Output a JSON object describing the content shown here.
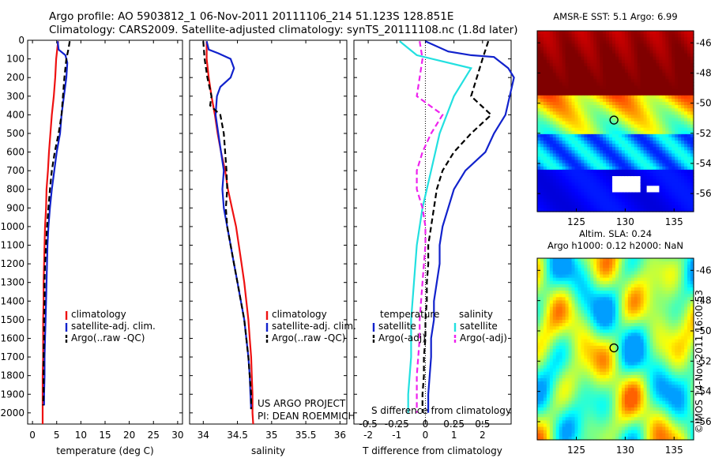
{
  "header": {
    "line1": "Argo profile: AO 5903812_1 06-Nov-2011 20111106_214 51.123S 128.851E",
    "line2": "Climatology: CARS2009. Satellite-adjusted climatology: synTS_20111108.nc (1.8d later)"
  },
  "credits": {
    "project": "US ARGO PROJECT",
    "pi": "PI: DEAN ROEMMICH",
    "stamp": "©IMOS 14-Nov-2011 16:00:53"
  },
  "colors": {
    "climatology": "#ee1111",
    "satellite": "#1122cc",
    "argo": "#000000",
    "salinity_satellite": "#22e0e0",
    "salinity_argo": "#ee22ee"
  },
  "chart_data": [
    {
      "type": "line",
      "panel": "temperature",
      "xlabel": "temperature (deg C)",
      "ylabel": "",
      "xlim": [
        -1,
        31
      ],
      "ylim": [
        2060,
        0
      ],
      "xticks": [
        0,
        5,
        10,
        15,
        20,
        25,
        30
      ],
      "yticks": [
        0,
        100,
        200,
        300,
        400,
        500,
        600,
        700,
        800,
        900,
        1000,
        1100,
        1200,
        1300,
        1400,
        1500,
        1600,
        1700,
        1800,
        1900,
        2000
      ],
      "legend": [
        "climatology",
        "satellite-adj. clim.",
        "Argo(..raw -QC)"
      ],
      "series": [
        {
          "name": "climatology",
          "color": "#ee1111",
          "dash": false,
          "points": [
            [
              5.3,
              5
            ],
            [
              5.1,
              50
            ],
            [
              4.9,
              100
            ],
            [
              4.7,
              200
            ],
            [
              4.4,
              300
            ],
            [
              4.0,
              400
            ],
            [
              3.7,
              500
            ],
            [
              3.4,
              600
            ],
            [
              3.2,
              700
            ],
            [
              2.9,
              800
            ],
            [
              2.8,
              900
            ],
            [
              2.6,
              1000
            ],
            [
              2.5,
              1100
            ],
            [
              2.4,
              1200
            ],
            [
              2.3,
              1300
            ],
            [
              2.3,
              1400
            ],
            [
              2.2,
              1500
            ],
            [
              2.2,
              1600
            ],
            [
              2.2,
              1700
            ],
            [
              2.1,
              1800
            ],
            [
              2.1,
              1900
            ],
            [
              2.1,
              2000
            ],
            [
              2.1,
              2060
            ]
          ]
        },
        {
          "name": "satellite-adj. clim.",
          "color": "#1122cc",
          "dash": false,
          "points": [
            [
              5.2,
              5
            ],
            [
              5.4,
              50
            ],
            [
              6.8,
              80
            ],
            [
              7.2,
              120
            ],
            [
              7.0,
              200
            ],
            [
              6.5,
              300
            ],
            [
              6.0,
              400
            ],
            [
              5.7,
              500
            ],
            [
              5.0,
              600
            ],
            [
              4.5,
              700
            ],
            [
              4.0,
              800
            ],
            [
              3.6,
              900
            ],
            [
              3.3,
              1000
            ],
            [
              3.1,
              1100
            ],
            [
              3.0,
              1200
            ],
            [
              2.9,
              1300
            ],
            [
              2.8,
              1400
            ],
            [
              2.7,
              1500
            ],
            [
              2.6,
              1600
            ],
            [
              2.5,
              1700
            ],
            [
              2.5,
              1800
            ],
            [
              2.4,
              1900
            ],
            [
              2.4,
              1960
            ]
          ]
        },
        {
          "name": "Argo(..raw -QC)",
          "color": "#000000",
          "dash": true,
          "points": [
            [
              7.7,
              5
            ],
            [
              7.4,
              50
            ],
            [
              7.0,
              100
            ],
            [
              6.6,
              200
            ],
            [
              6.3,
              300
            ],
            [
              6.0,
              400
            ],
            [
              5.4,
              500
            ],
            [
              4.6,
              600
            ],
            [
              4.0,
              700
            ],
            [
              3.6,
              800
            ],
            [
              3.3,
              900
            ],
            [
              3.0,
              1000
            ],
            [
              2.8,
              1100
            ],
            [
              2.6,
              1200
            ],
            [
              2.5,
              1300
            ],
            [
              2.5,
              1400
            ],
            [
              2.4,
              1500
            ],
            [
              2.4,
              1600
            ],
            [
              2.3,
              1700
            ],
            [
              2.3,
              1800
            ],
            [
              2.3,
              1900
            ],
            [
              2.2,
              1960
            ]
          ]
        }
      ]
    },
    {
      "type": "line",
      "panel": "salinity",
      "xlabel": "salinity",
      "ylabel": "",
      "xlim": [
        33.8,
        36.1
      ],
      "ylim": [
        2060,
        0
      ],
      "xticks": [
        34,
        34.5,
        35,
        35.5,
        36
      ],
      "legend": [
        "climatology",
        "satellite-adj. clim.",
        "Argo(..raw -QC)"
      ],
      "series": [
        {
          "name": "climatology",
          "color": "#ee1111",
          "dash": false,
          "points": [
            [
              34.05,
              5
            ],
            [
              34.05,
              100
            ],
            [
              34.08,
              200
            ],
            [
              34.12,
              300
            ],
            [
              34.17,
              400
            ],
            [
              34.21,
              500
            ],
            [
              34.26,
              600
            ],
            [
              34.32,
              700
            ],
            [
              34.36,
              800
            ],
            [
              34.42,
              900
            ],
            [
              34.48,
              1000
            ],
            [
              34.52,
              1100
            ],
            [
              34.56,
              1200
            ],
            [
              34.6,
              1300
            ],
            [
              34.63,
              1400
            ],
            [
              34.66,
              1500
            ],
            [
              34.68,
              1600
            ],
            [
              34.7,
              1700
            ],
            [
              34.71,
              1800
            ],
            [
              34.72,
              1900
            ],
            [
              34.72,
              2000
            ],
            [
              34.73,
              2060
            ]
          ]
        },
        {
          "name": "satellite-adj. clim.",
          "color": "#1122cc",
          "dash": false,
          "points": [
            [
              34.05,
              5
            ],
            [
              34.08,
              50
            ],
            [
              34.22,
              70
            ],
            [
              34.4,
              100
            ],
            [
              34.45,
              150
            ],
            [
              34.4,
              200
            ],
            [
              34.25,
              250
            ],
            [
              34.2,
              300
            ],
            [
              34.18,
              400
            ],
            [
              34.22,
              500
            ],
            [
              34.26,
              600
            ],
            [
              34.3,
              700
            ],
            [
              34.28,
              800
            ],
            [
              34.3,
              900
            ],
            [
              34.35,
              1000
            ],
            [
              34.4,
              1100
            ],
            [
              34.45,
              1200
            ],
            [
              34.5,
              1300
            ],
            [
              34.55,
              1400
            ],
            [
              34.6,
              1500
            ],
            [
              34.63,
              1600
            ],
            [
              34.66,
              1700
            ],
            [
              34.68,
              1800
            ],
            [
              34.69,
              1900
            ],
            [
              34.7,
              1980
            ]
          ]
        },
        {
          "name": "Argo(..raw -QC)",
          "color": "#000000",
          "dash": true,
          "points": [
            [
              34.0,
              5
            ],
            [
              34.02,
              100
            ],
            [
              34.06,
              200
            ],
            [
              34.12,
              300
            ],
            [
              34.1,
              350
            ],
            [
              34.25,
              400
            ],
            [
              34.3,
              500
            ],
            [
              34.32,
              600
            ],
            [
              34.34,
              700
            ],
            [
              34.35,
              800
            ],
            [
              34.33,
              900
            ],
            [
              34.35,
              1000
            ],
            [
              34.4,
              1100
            ],
            [
              34.45,
              1200
            ],
            [
              34.5,
              1300
            ],
            [
              34.55,
              1400
            ],
            [
              34.6,
              1500
            ],
            [
              34.63,
              1600
            ],
            [
              34.66,
              1700
            ],
            [
              34.68,
              1800
            ],
            [
              34.7,
              1900
            ],
            [
              34.7,
              1980
            ]
          ]
        }
      ],
      "annotations": [
        "US ARGO PROJECT",
        "PI: DEAN ROEMMICH"
      ]
    },
    {
      "type": "line",
      "panel": "difference",
      "xlabel": "T difference from climatology",
      "xlabel_top": "S difference from climatology",
      "xlim": [
        -2.5,
        3.0
      ],
      "ylim": [
        2060,
        0
      ],
      "xticks": [
        -2,
        -1,
        0,
        1,
        2
      ],
      "xticks_s": [
        -0.5,
        -0.25,
        0,
        0.25,
        0.5
      ],
      "xticks_s_labels": [
        "-0.5",
        "-0.25",
        "0",
        "0.25",
        "0.5"
      ],
      "legend_groups": {
        "temperature": [
          "satellite",
          "Argo(-adj)"
        ],
        "salinity": [
          "satellite",
          "Argo(-adj)"
        ]
      },
      "legend_headers": [
        "temperature",
        "salinity"
      ],
      "series": [
        {
          "name": "temperature satellite",
          "color": "#1122cc",
          "dash": false,
          "points": [
            [
              0.0,
              5
            ],
            [
              0.8,
              60
            ],
            [
              1.6,
              80
            ],
            [
              2.4,
              90
            ],
            [
              2.9,
              150
            ],
            [
              3.1,
              200
            ],
            [
              2.8,
              400
            ],
            [
              2.4,
              500
            ],
            [
              2.1,
              600
            ],
            [
              1.4,
              700
            ],
            [
              1.0,
              800
            ],
            [
              0.8,
              900
            ],
            [
              0.6,
              1000
            ],
            [
              0.5,
              1100
            ],
            [
              0.5,
              1200
            ],
            [
              0.4,
              1300
            ],
            [
              0.3,
              1400
            ],
            [
              0.3,
              1500
            ],
            [
              0.2,
              1600
            ],
            [
              0.2,
              1700
            ],
            [
              0.15,
              1800
            ],
            [
              0.1,
              1900
            ],
            [
              0.1,
              2000
            ]
          ]
        },
        {
          "name": "temperature Argo(-adj)",
          "color": "#000000",
          "dash": true,
          "points": [
            [
              2.2,
              5
            ],
            [
              2.0,
              100
            ],
            [
              1.8,
              200
            ],
            [
              1.6,
              300
            ],
            [
              2.3,
              400
            ],
            [
              1.6,
              500
            ],
            [
              1.0,
              600
            ],
            [
              0.6,
              700
            ],
            [
              0.4,
              800
            ],
            [
              0.3,
              900
            ],
            [
              0.2,
              1000
            ],
            [
              0.1,
              1100
            ],
            [
              0.1,
              1200
            ],
            [
              0.05,
              1300
            ],
            [
              0.05,
              1400
            ],
            [
              0.0,
              1500
            ],
            [
              0.0,
              1600
            ],
            [
              -0.05,
              1700
            ],
            [
              -0.05,
              1800
            ],
            [
              -0.1,
              1900
            ],
            [
              -0.1,
              2000
            ]
          ]
        },
        {
          "name": "salinity satellite",
          "color": "#22e0e0",
          "dash": false,
          "points": [
            [
              -0.9,
              5
            ],
            [
              -0.3,
              80
            ],
            [
              1.6,
              150
            ],
            [
              1.0,
              300
            ],
            [
              0.5,
              500
            ],
            [
              0.2,
              700
            ],
            [
              -0.1,
              900
            ],
            [
              -0.3,
              1100
            ],
            [
              -0.4,
              1300
            ],
            [
              -0.5,
              1500
            ],
            [
              -0.5,
              1700
            ],
            [
              -0.6,
              1900
            ],
            [
              -0.6,
              2000
            ]
          ]
        },
        {
          "name": "salinity Argo(-adj)",
          "color": "#ee22ee",
          "dash": true,
          "points": [
            [
              -0.2,
              5
            ],
            [
              -0.1,
              100
            ],
            [
              -0.2,
              200
            ],
            [
              -0.3,
              300
            ],
            [
              0.6,
              400
            ],
            [
              0.2,
              500
            ],
            [
              -0.1,
              600
            ],
            [
              -0.3,
              700
            ],
            [
              -0.3,
              800
            ],
            [
              -0.1,
              900
            ],
            [
              0.0,
              1000
            ],
            [
              0.0,
              1100
            ],
            [
              -0.05,
              1200
            ],
            [
              -0.1,
              1300
            ],
            [
              -0.15,
              1400
            ],
            [
              -0.2,
              1500
            ],
            [
              -0.2,
              1600
            ],
            [
              -0.25,
              1700
            ],
            [
              -0.3,
              1800
            ],
            [
              -0.3,
              1900
            ],
            [
              -0.3,
              2000
            ]
          ]
        }
      ]
    },
    {
      "type": "heatmap",
      "panel": "sst-map",
      "title": "AMSR-E SST: 5.1 Argo: 6.99",
      "xlim": [
        121,
        137
      ],
      "ylim": [
        -57.2,
        -45.2
      ],
      "xticks": [
        125,
        130,
        135
      ],
      "yticks": [
        -46,
        -48,
        -50,
        -52,
        -54,
        -56
      ],
      "marker": {
        "lon": 128.851,
        "lat": -51.123
      }
    },
    {
      "type": "heatmap",
      "panel": "sla-map",
      "title_line1": "Altim. SLA: 0.24",
      "title_line2": "Argo h1000: 0.12 h2000: NaN",
      "xlim": [
        121,
        137
      ],
      "ylim": [
        -57.2,
        -45.2
      ],
      "xticks": [
        125,
        130,
        135
      ],
      "yticks": [
        -46,
        -48,
        -50,
        -52,
        -54,
        -56
      ],
      "marker": {
        "lon": 128.851,
        "lat": -51.123
      }
    }
  ]
}
